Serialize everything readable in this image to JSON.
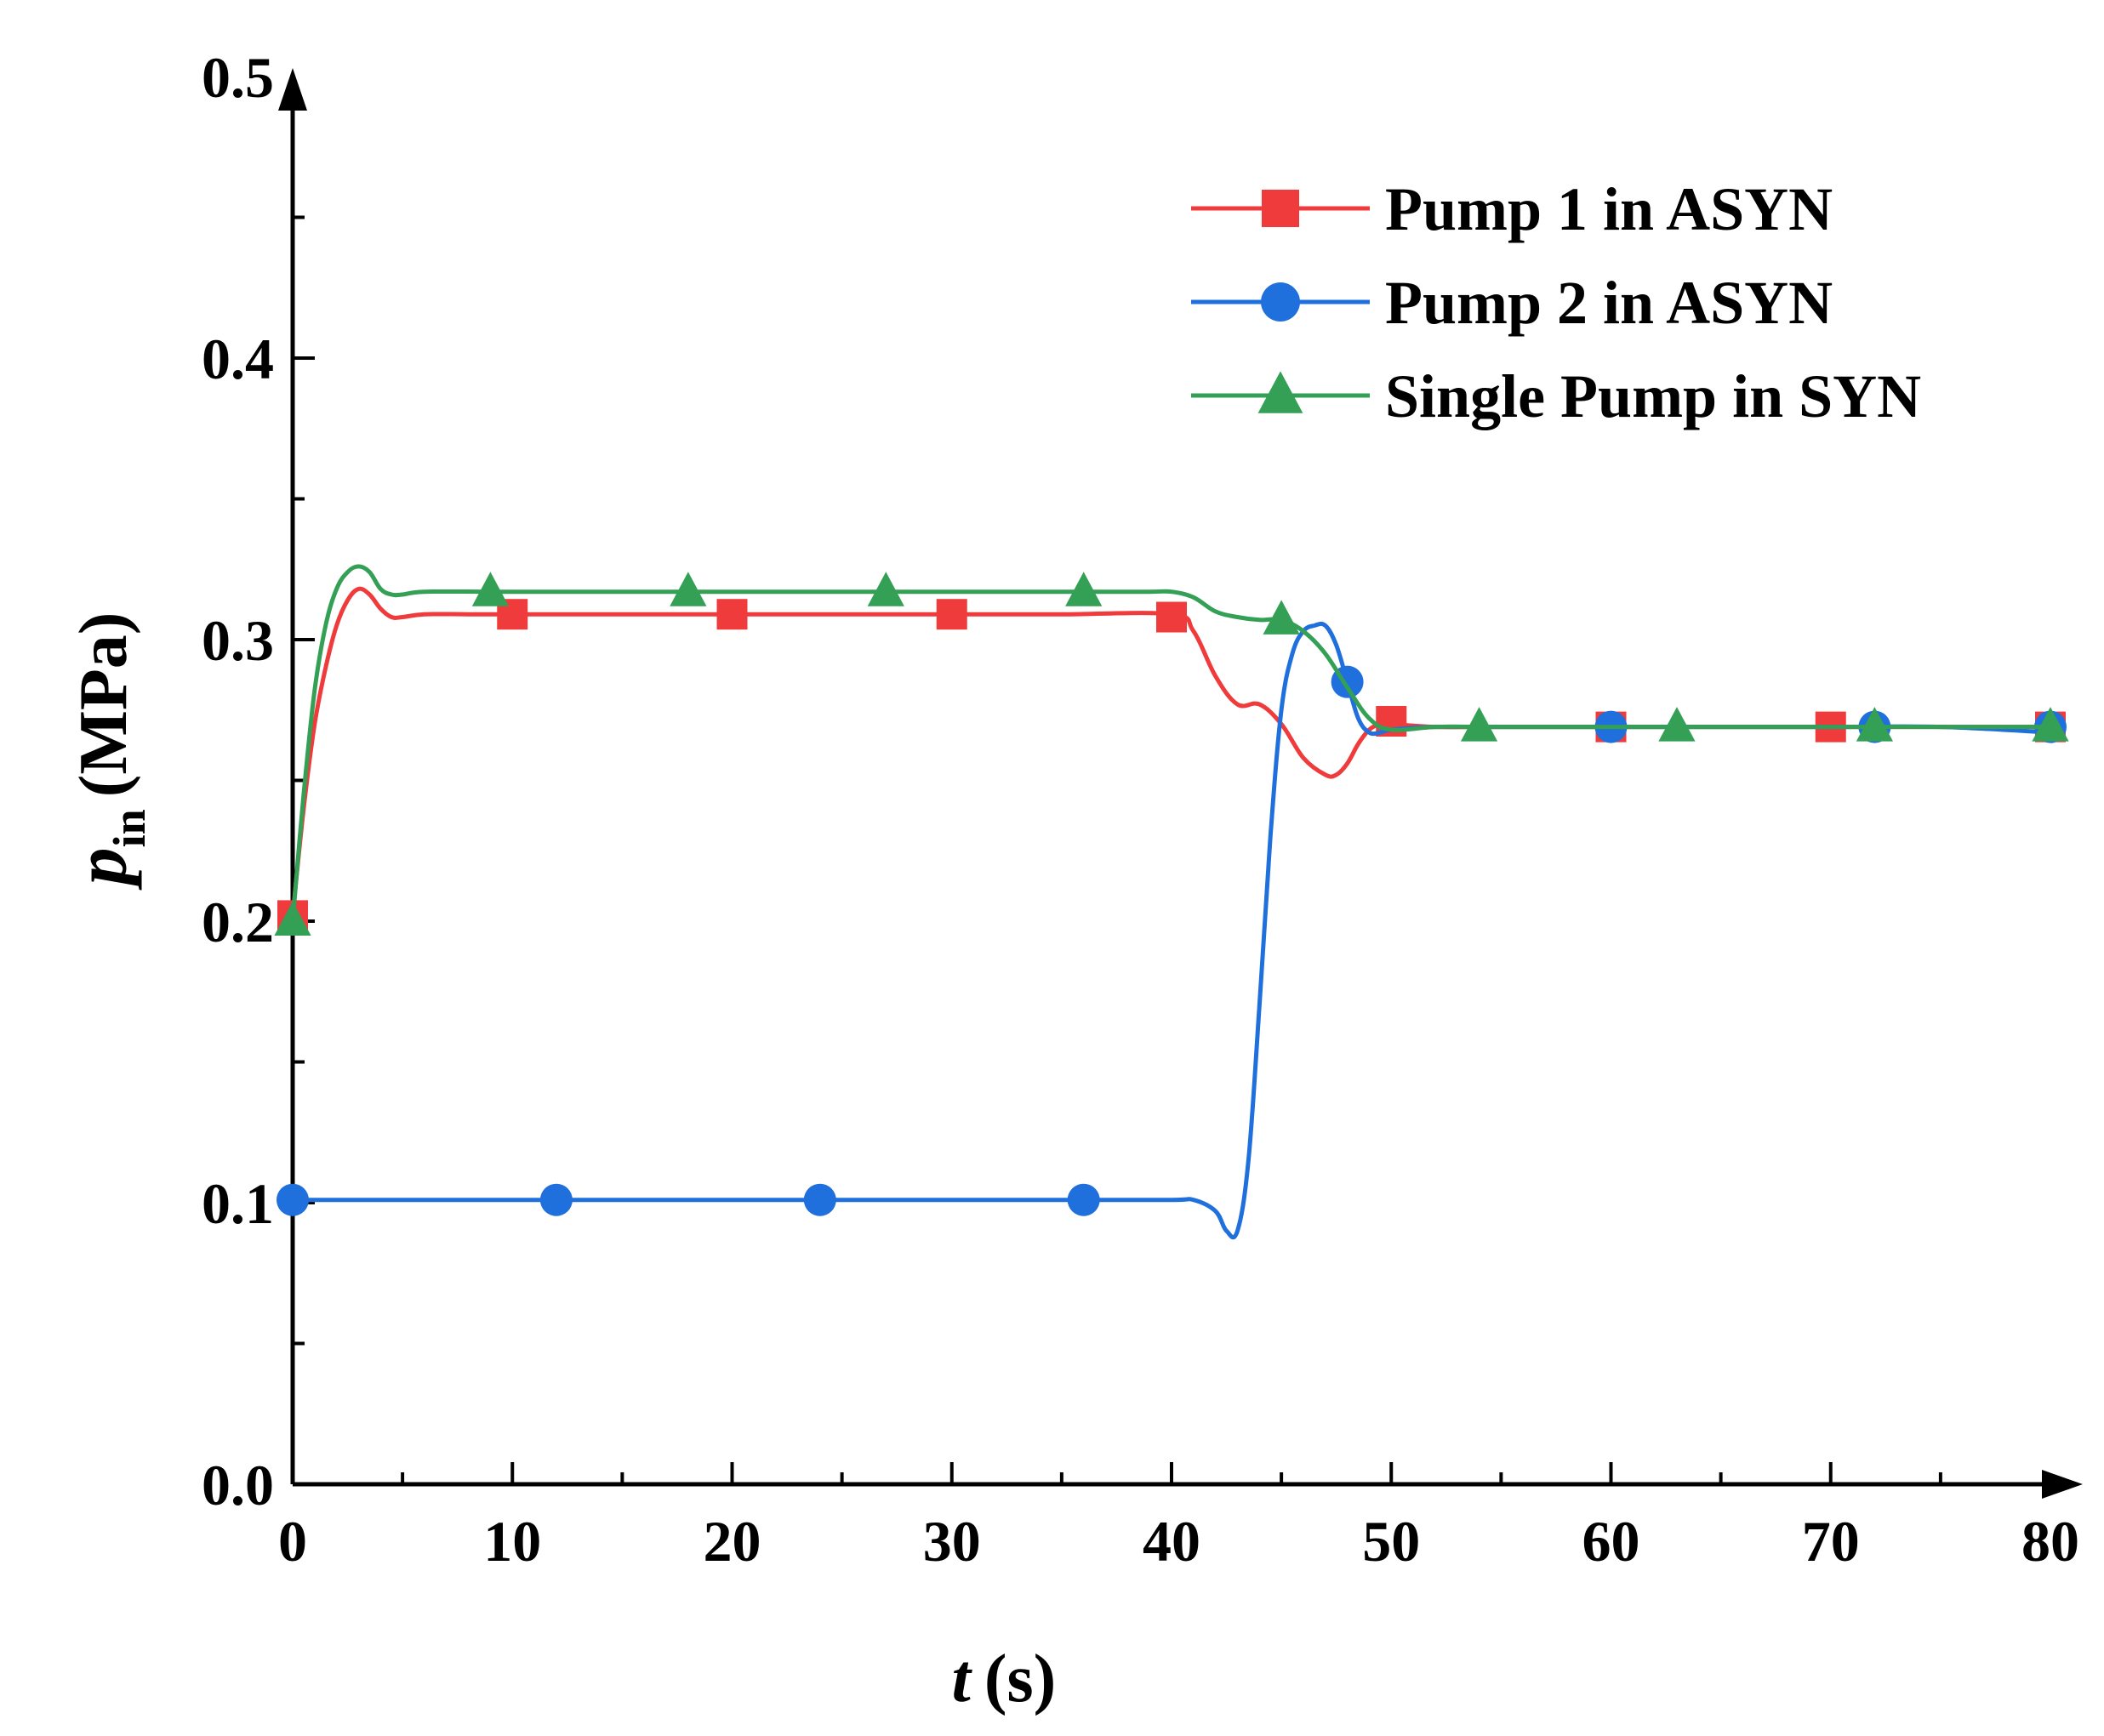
{
  "chart_data": {
    "type": "line",
    "xlabel": {
      "var": "t",
      "unit": "(s)"
    },
    "ylabel": {
      "var": "p",
      "sub": "in",
      "unit": "(MPa)"
    },
    "xlim": [
      0,
      80
    ],
    "ylim": [
      0.0,
      0.5
    ],
    "xticks": [
      0,
      10,
      20,
      30,
      40,
      50,
      60,
      70,
      80
    ],
    "xtick_labels": [
      "0",
      "10",
      "20",
      "30",
      "40",
      "50",
      "60",
      "70",
      "80"
    ],
    "yticks": [
      0.0,
      0.1,
      0.2,
      0.3,
      0.4,
      0.5
    ],
    "ytick_labels": [
      "0.0",
      "0.1",
      "0.2",
      "0.3",
      "0.4",
      "0.5"
    ],
    "x_minor_step": 5,
    "y_minor_step": 0.05,
    "legend_position": "top-right",
    "series": [
      {
        "name": "Pump 1 in ASYN",
        "color": "#ef3b3b",
        "marker": "square",
        "x": [
          0,
          0.5,
          1,
          1.5,
          2,
          2.5,
          3,
          3.5,
          4,
          4.5,
          5,
          6,
          8,
          10,
          15,
          20,
          25,
          30,
          35,
          40,
          41,
          42,
          43,
          44,
          45,
          46,
          47,
          47.5,
          48,
          48.5,
          49,
          49.5,
          50,
          52,
          55,
          60,
          65,
          70,
          75,
          80
        ],
        "y": [
          0.202,
          0.24,
          0.27,
          0.29,
          0.305,
          0.314,
          0.318,
          0.316,
          0.311,
          0.308,
          0.308,
          0.309,
          0.309,
          0.309,
          0.309,
          0.309,
          0.309,
          0.309,
          0.309,
          0.309,
          0.303,
          0.287,
          0.277,
          0.277,
          0.27,
          0.258,
          0.252,
          0.252,
          0.256,
          0.263,
          0.268,
          0.27,
          0.27,
          0.269,
          0.269,
          0.269,
          0.269,
          0.269,
          0.269,
          0.269
        ],
        "markers_x": [
          0,
          10,
          20,
          30,
          40,
          50,
          60,
          70,
          80
        ],
        "markers_y": [
          0.202,
          0.309,
          0.309,
          0.309,
          0.308,
          0.271,
          0.269,
          0.269,
          0.269
        ]
      },
      {
        "name": "Pump 2 in ASYN",
        "color": "#1f6fdd",
        "marker": "circle",
        "x": [
          0,
          5,
          10,
          15,
          20,
          25,
          30,
          35,
          40,
          41,
          42,
          42.5,
          43,
          43.5,
          44,
          44.5,
          45,
          45.5,
          46,
          46.5,
          47,
          47.5,
          48,
          48.5,
          49,
          49.5,
          50,
          52,
          55,
          60,
          65,
          70,
          75,
          80
        ],
        "y": [
          0.101,
          0.101,
          0.101,
          0.101,
          0.101,
          0.101,
          0.101,
          0.101,
          0.101,
          0.101,
          0.097,
          0.09,
          0.09,
          0.115,
          0.17,
          0.23,
          0.275,
          0.295,
          0.303,
          0.305,
          0.305,
          0.298,
          0.285,
          0.272,
          0.267,
          0.267,
          0.268,
          0.269,
          0.269,
          0.269,
          0.269,
          0.269,
          0.269,
          0.267
        ],
        "markers_x": [
          0,
          12,
          24,
          36,
          48,
          60,
          72,
          80
        ],
        "markers_y": [
          0.101,
          0.101,
          0.101,
          0.101,
          0.285,
          0.269,
          0.269,
          0.269
        ]
      },
      {
        "name": "Single Pump in SYN",
        "color": "#33a055",
        "marker": "triangle",
        "x": [
          0,
          0.5,
          1,
          1.5,
          2,
          2.5,
          3,
          3.5,
          4,
          4.5,
          5,
          6,
          9,
          12,
          18,
          24,
          27,
          30,
          36,
          39,
          40,
          41,
          42,
          43,
          44,
          45,
          46,
          47,
          48,
          49,
          50,
          52,
          54,
          60,
          63,
          70,
          72,
          80
        ],
        "y": [
          0.2,
          0.245,
          0.282,
          0.305,
          0.318,
          0.324,
          0.326,
          0.324,
          0.318,
          0.316,
          0.316,
          0.317,
          0.317,
          0.317,
          0.317,
          0.317,
          0.317,
          0.317,
          0.317,
          0.317,
          0.317,
          0.315,
          0.31,
          0.308,
          0.307,
          0.307,
          0.303,
          0.295,
          0.283,
          0.272,
          0.268,
          0.269,
          0.269,
          0.269,
          0.269,
          0.269,
          0.269,
          0.269
        ],
        "markers_x": [
          0,
          9,
          18,
          27,
          36,
          45,
          54,
          63,
          72,
          80
        ],
        "markers_y": [
          0.2,
          0.317,
          0.317,
          0.317,
          0.317,
          0.307,
          0.269,
          0.269,
          0.269,
          0.269
        ]
      }
    ]
  }
}
